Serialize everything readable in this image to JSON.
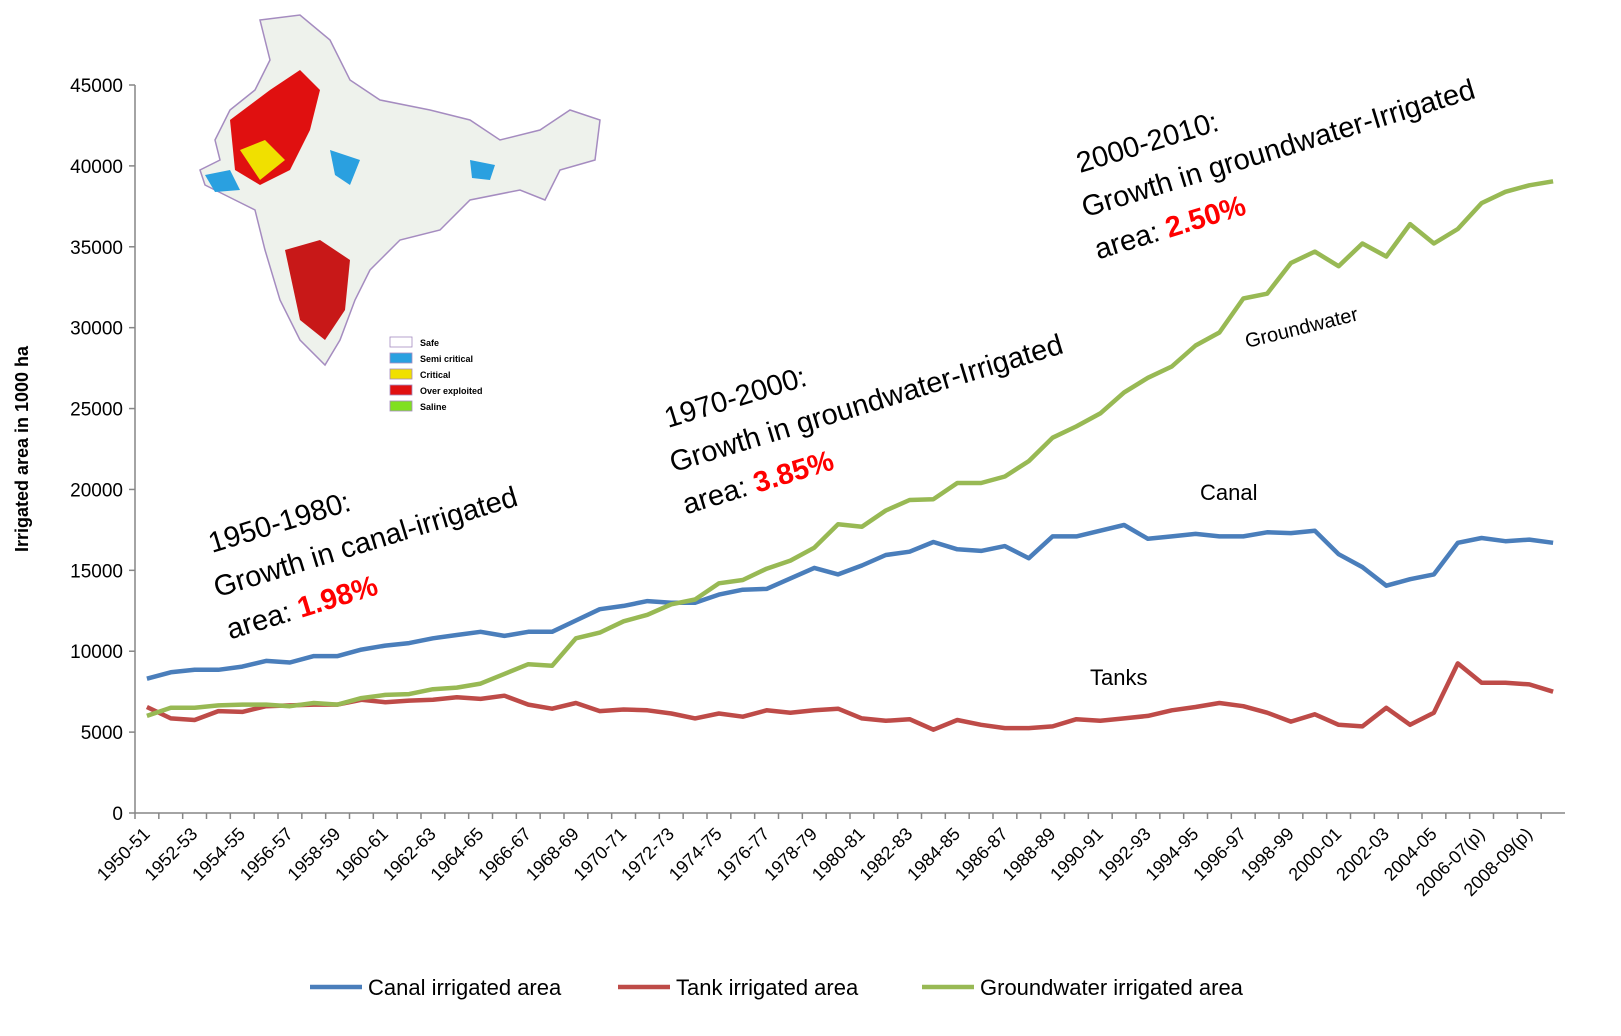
{
  "chart_data": {
    "type": "line",
    "y_label": "Irrigated area in 1000 ha",
    "categories": [
      "1950-51",
      null,
      "1952-53",
      null,
      "1954-55",
      null,
      "1956-57",
      null,
      "1958-59",
      null,
      "1960-61",
      null,
      "1962-63",
      null,
      "1964-65",
      null,
      "1966-67",
      null,
      "1968-69",
      null,
      "1970-71",
      null,
      "1972-73",
      null,
      "1974-75",
      null,
      "1976-77",
      null,
      "1978-79",
      null,
      "1980-81",
      null,
      "1982-83",
      null,
      "1984-85",
      null,
      "1986-87",
      null,
      "1988-89",
      null,
      "1990-91",
      null,
      "1992-93",
      null,
      "1994-95",
      null,
      "1996-97",
      null,
      "1998-99",
      null,
      "2000-01",
      null,
      "2002-03",
      null,
      "2004-05",
      null,
      "2006-07(p)",
      null,
      "2008-09(p)",
      null
    ],
    "series": [
      {
        "name": "Canal irrigated area",
        "color": "#4a7ebb",
        "values": [
          8300,
          8700,
          8850,
          8850,
          9050,
          9400,
          9300,
          9700,
          9700,
          10100,
          10350,
          10500,
          10800,
          11000,
          11200,
          10950,
          11200,
          11200,
          11900,
          12600,
          12800,
          13100,
          13000,
          13000,
          13500,
          13800,
          13850,
          14500,
          15150,
          14750,
          15300,
          15950,
          16150,
          16750,
          16300,
          16200,
          16500,
          15750,
          17100,
          17100,
          17450,
          17800,
          16950,
          17100,
          17250,
          17100,
          17100,
          17350,
          17300,
          17450,
          16000,
          15200,
          14050,
          14450,
          14750,
          16700,
          17000,
          16800,
          16900,
          16700
        ]
      },
      {
        "name": "Tank irrigated area",
        "color": "#be4b48",
        "values": [
          6550,
          5850,
          5750,
          6300,
          6250,
          6600,
          6650,
          6700,
          6700,
          7000,
          6850,
          6950,
          7000,
          7150,
          7050,
          7250,
          6700,
          6450,
          6800,
          6300,
          6400,
          6350,
          6150,
          5850,
          6150,
          5950,
          6350,
          6200,
          6350,
          6450,
          5850,
          5700,
          5800,
          5150,
          5750,
          5450,
          5250,
          5250,
          5350,
          5800,
          5700,
          5850,
          6000,
          6350,
          6550,
          6800,
          6600,
          6200,
          5650,
          6100,
          5450,
          5350,
          6500,
          5450,
          6200,
          9250,
          8050,
          8050,
          7950,
          7500
        ]
      },
      {
        "name": "Groundwater irrigated area",
        "color": "#98b954",
        "values": [
          6000,
          6500,
          6500,
          6650,
          6700,
          6700,
          6600,
          6800,
          6700,
          7100,
          7300,
          7350,
          7650,
          7750,
          8000,
          8600,
          9200,
          9100,
          10800,
          11150,
          11850,
          12250,
          12900,
          13200,
          14200,
          14400,
          15100,
          15600,
          16400,
          17850,
          17700,
          18700,
          19350,
          19400,
          20400,
          20400,
          20800,
          21750,
          23200,
          23900,
          24700,
          26000,
          26900,
          27600,
          28900,
          29700,
          31800,
          32100,
          34000,
          34700,
          33800,
          35200,
          34400,
          36400,
          35200,
          36100,
          37700,
          38400,
          38800,
          39050
        ]
      }
    ],
    "ylim": [
      0,
      45000
    ],
    "yticks": [
      0,
      5000,
      10000,
      15000,
      20000,
      25000,
      30000,
      35000,
      40000,
      45000
    ],
    "line_labels": [
      "Groundwater",
      "Canal",
      "Tanks"
    ],
    "annotations": [
      {
        "heading": "1950-1980:",
        "text": "Growth in canal-irrigated",
        "label": "area:",
        "value": "1.98%"
      },
      {
        "heading": "1970-2000:",
        "text": "Growth in groundwater-Irrigated",
        "label": "area:",
        "value": "3.85%"
      },
      {
        "heading": "2000-2010:",
        "text": "Growth in groundwater-Irrigated",
        "label": "area:",
        "value": "2.50%"
      }
    ],
    "map_legend": [
      "Safe",
      "Semi critical",
      "Critical",
      "Over exploited",
      "Saline"
    ],
    "legend": "bottom"
  }
}
